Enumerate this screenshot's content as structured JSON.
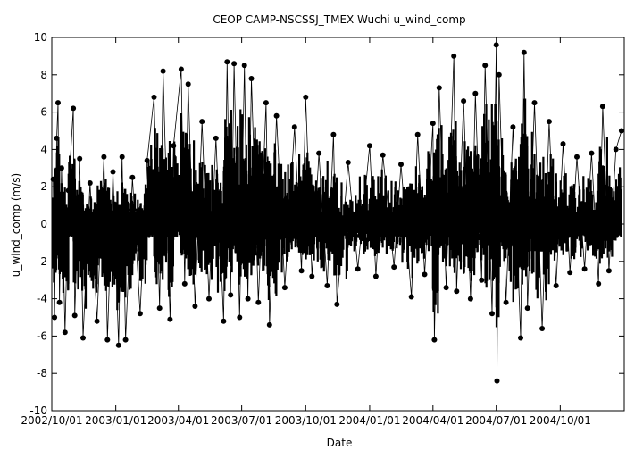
{
  "chart_data": {
    "type": "scatter",
    "title": "CEOP CAMP-NSCSSJ_TMEX Wuchi  u_wind_comp",
    "xlabel": "Date",
    "ylabel": "u_wind_comp (m/s)",
    "ylim": [
      -10,
      10
    ],
    "xlim": [
      "2002-10-01",
      "2005-01-01"
    ],
    "yticks": [
      -10,
      -8,
      -6,
      -4,
      -2,
      0,
      2,
      4,
      6,
      8,
      10
    ],
    "xticks": [
      "2002/10/01",
      "2003/01/01",
      "2003/04/01",
      "2003/07/01",
      "2003/10/01",
      "2004/01/01",
      "2004/04/01",
      "2004/07/01",
      "2004/10/01"
    ],
    "grid": false,
    "marker": "filled-circle",
    "color": "#000000",
    "series": [
      {
        "points": [
          [
            "2002-10-03",
            2.4
          ],
          [
            "2002-10-05",
            -5.0
          ],
          [
            "2002-10-08",
            4.6
          ],
          [
            "2002-10-10",
            6.5
          ],
          [
            "2002-10-12",
            -4.2
          ],
          [
            "2002-10-15",
            3.0
          ],
          [
            "2002-10-20",
            -5.8
          ],
          [
            "2002-10-25",
            1.8
          ],
          [
            "2002-11-01",
            6.2
          ],
          [
            "2002-11-03",
            -4.9
          ],
          [
            "2002-11-10",
            3.5
          ],
          [
            "2002-11-15",
            -6.1
          ],
          [
            "2002-11-25",
            2.2
          ],
          [
            "2002-12-05",
            -5.2
          ],
          [
            "2002-12-15",
            3.6
          ],
          [
            "2002-12-20",
            -6.2
          ],
          [
            "2002-12-28",
            2.8
          ],
          [
            "2003-01-05",
            -6.5
          ],
          [
            "2003-01-10",
            3.6
          ],
          [
            "2003-01-15",
            -6.2
          ],
          [
            "2003-01-25",
            2.5
          ],
          [
            "2003-02-05",
            -4.8
          ],
          [
            "2003-02-15",
            3.4
          ],
          [
            "2003-02-25",
            6.8
          ],
          [
            "2003-03-05",
            -4.5
          ],
          [
            "2003-03-10",
            8.2
          ],
          [
            "2003-03-20",
            -5.1
          ],
          [
            "2003-03-25",
            4.2
          ],
          [
            "2003-04-05",
            8.3
          ],
          [
            "2003-04-10",
            -3.2
          ],
          [
            "2003-04-15",
            7.5
          ],
          [
            "2003-04-25",
            -4.4
          ],
          [
            "2003-05-05",
            5.5
          ],
          [
            "2003-05-15",
            -4.0
          ],
          [
            "2003-05-25",
            4.6
          ],
          [
            "2003-06-05",
            -5.2
          ],
          [
            "2003-06-10",
            8.7
          ],
          [
            "2003-06-15",
            -3.8
          ],
          [
            "2003-06-20",
            8.6
          ],
          [
            "2003-06-28",
            -5.0
          ],
          [
            "2003-07-05",
            8.5
          ],
          [
            "2003-07-10",
            -4.0
          ],
          [
            "2003-07-15",
            7.8
          ],
          [
            "2003-07-25",
            -4.2
          ],
          [
            "2003-08-05",
            6.5
          ],
          [
            "2003-08-10",
            -5.4
          ],
          [
            "2003-08-20",
            5.8
          ],
          [
            "2003-09-01",
            -3.4
          ],
          [
            "2003-09-15",
            5.2
          ],
          [
            "2003-09-25",
            -2.5
          ],
          [
            "2003-10-01",
            6.8
          ],
          [
            "2003-10-10",
            -2.8
          ],
          [
            "2003-10-20",
            3.8
          ],
          [
            "2003-11-01",
            -3.3
          ],
          [
            "2003-11-10",
            4.8
          ],
          [
            "2003-11-15",
            -4.3
          ],
          [
            "2003-12-01",
            3.3
          ],
          [
            "2003-12-15",
            -2.4
          ],
          [
            "2004-01-01",
            4.2
          ],
          [
            "2004-01-10",
            -2.8
          ],
          [
            "2004-01-20",
            3.7
          ],
          [
            "2004-02-05",
            -2.3
          ],
          [
            "2004-02-15",
            3.2
          ],
          [
            "2004-03-01",
            -3.9
          ],
          [
            "2004-03-10",
            4.8
          ],
          [
            "2004-03-20",
            -2.7
          ],
          [
            "2004-04-01",
            5.4
          ],
          [
            "2004-04-03",
            -6.2
          ],
          [
            "2004-04-10",
            7.3
          ],
          [
            "2004-04-20",
            -3.4
          ],
          [
            "2004-05-01",
            9.0
          ],
          [
            "2004-05-05",
            -3.6
          ],
          [
            "2004-05-15",
            6.6
          ],
          [
            "2004-05-25",
            -4.0
          ],
          [
            "2004-06-01",
            7.0
          ],
          [
            "2004-06-10",
            -3.0
          ],
          [
            "2004-06-15",
            8.5
          ],
          [
            "2004-06-25",
            -4.8
          ],
          [
            "2004-07-01",
            9.6
          ],
          [
            "2004-07-02",
            -8.4
          ],
          [
            "2004-07-05",
            8.0
          ],
          [
            "2004-07-15",
            -4.2
          ],
          [
            "2004-07-25",
            5.2
          ],
          [
            "2004-08-05",
            -6.1
          ],
          [
            "2004-08-10",
            9.2
          ],
          [
            "2004-08-15",
            -4.5
          ],
          [
            "2004-08-25",
            6.5
          ],
          [
            "2004-09-05",
            -5.6
          ],
          [
            "2004-09-15",
            5.5
          ],
          [
            "2004-09-25",
            -3.3
          ],
          [
            "2004-10-05",
            4.3
          ],
          [
            "2004-10-15",
            -2.6
          ],
          [
            "2004-10-25",
            3.6
          ],
          [
            "2004-11-05",
            -2.4
          ],
          [
            "2004-11-15",
            3.8
          ],
          [
            "2004-11-25",
            -3.2
          ],
          [
            "2004-12-01",
            6.3
          ],
          [
            "2004-12-10",
            -2.5
          ],
          [
            "2004-12-20",
            4.0
          ],
          [
            "2004-12-28",
            5.0
          ]
        ]
      }
    ]
  }
}
